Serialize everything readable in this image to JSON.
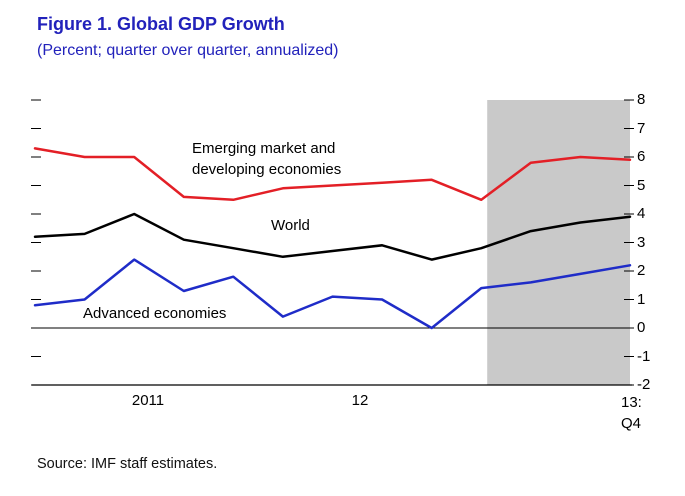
{
  "header": {
    "title": "Figure 1. Global GDP Growth",
    "subtitle": "(Percent; quarter over quarter, annualized)",
    "title_color": "#2222bb"
  },
  "source": "Source: IMF staff estimates.",
  "chart_data": {
    "type": "line",
    "title": "Figure 1. Global GDP Growth",
    "subtitle": "(Percent; quarter over quarter, annualized)",
    "x": [
      "2010:Q4",
      "2011:Q1",
      "2011:Q2",
      "2011:Q3",
      "2011:Q4",
      "2012:Q1",
      "2012:Q2",
      "2012:Q3",
      "2012:Q4",
      "2013:Q1",
      "2013:Q2",
      "2013:Q3",
      "2013:Q4"
    ],
    "x_axis_labels": [
      "2011",
      "12",
      "13:\nQ4"
    ],
    "ylim": [
      -2,
      8
    ],
    "ytick_labels": [
      "8",
      "7",
      "6",
      "5",
      "4",
      "3",
      "2",
      "1",
      "0",
      "-1",
      "-2"
    ],
    "grid": "off",
    "zero_line": true,
    "legend_position": "inline labels on chart",
    "series": [
      {
        "name": "Emerging market and developing economies",
        "color": "#e31f26",
        "values": [
          6.3,
          6.0,
          6.0,
          4.6,
          4.5,
          4.9,
          5.0,
          5.1,
          5.2,
          4.5,
          5.8,
          6.0,
          5.9
        ]
      },
      {
        "name": "World",
        "color": "#000000",
        "values": [
          3.2,
          3.3,
          4.0,
          3.1,
          2.8,
          2.5,
          2.7,
          2.9,
          2.4,
          2.8,
          3.4,
          3.7,
          3.9
        ]
      },
      {
        "name": "Advanced economies",
        "color": "#1f2cc8",
        "values": [
          0.8,
          1.0,
          2.4,
          1.3,
          1.8,
          0.4,
          1.1,
          1.0,
          0.0,
          1.4,
          1.6,
          1.9,
          2.2
        ]
      }
    ],
    "forecast_band": {
      "from_index": 9.12,
      "color": "#c9c9c9"
    }
  }
}
